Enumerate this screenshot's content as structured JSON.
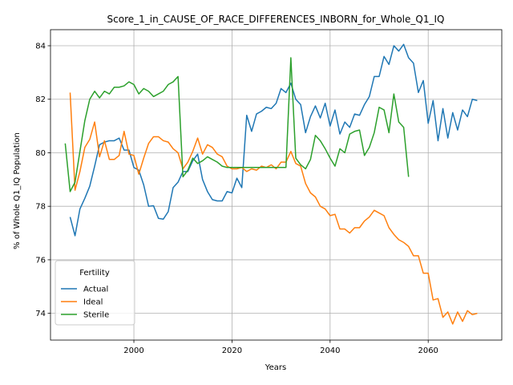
{
  "chart_data": {
    "type": "line",
    "title": "Score_1_in_CAUSE_OF_RACE_DIFFERENCES_INBORN_for_Whole_Q1_IQ",
    "xlabel": "Years",
    "ylabel": "% of Whole Q1_IQ Population",
    "xlim": [
      1983,
      2075
    ],
    "ylim": [
      73.0,
      84.6
    ],
    "xticks": [
      2000,
      2020,
      2040,
      2060
    ],
    "yticks": [
      74,
      76,
      78,
      80,
      82,
      84
    ],
    "grid": true,
    "legend": {
      "title": "Fertility",
      "placement": "lower-left"
    },
    "series": [
      {
        "name": "Actual",
        "color": "#1f77b4",
        "points": [
          [
            1987,
            77.6
          ],
          [
            1988,
            76.9
          ],
          [
            1989,
            77.9
          ],
          [
            1990,
            78.3
          ],
          [
            1991,
            78.75
          ],
          [
            1992,
            79.5
          ],
          [
            1993,
            80.3
          ],
          [
            1994,
            80.4
          ],
          [
            1995,
            80.45
          ],
          [
            1996,
            80.45
          ],
          [
            1997,
            80.55
          ],
          [
            1998,
            80.1
          ],
          [
            1999,
            80.1
          ],
          [
            2000,
            79.45
          ],
          [
            2001,
            79.35
          ],
          [
            2002,
            78.8
          ],
          [
            2003,
            78.0
          ],
          [
            2004,
            78.02
          ],
          [
            2005,
            77.55
          ],
          [
            2006,
            77.52
          ],
          [
            2007,
            77.8
          ],
          [
            2008,
            78.7
          ],
          [
            2009,
            78.9
          ],
          [
            2010,
            79.3
          ],
          [
            2011,
            79.3
          ],
          [
            2012,
            79.7
          ],
          [
            2013,
            79.95
          ],
          [
            2014,
            79.0
          ],
          [
            2015,
            78.55
          ],
          [
            2016,
            78.25
          ],
          [
            2017,
            78.2
          ],
          [
            2018,
            78.2
          ],
          [
            2019,
            78.55
          ],
          [
            2020,
            78.5
          ],
          [
            2021,
            79.05
          ],
          [
            2022,
            78.7
          ],
          [
            2023,
            81.4
          ],
          [
            2024,
            80.8
          ],
          [
            2025,
            81.45
          ],
          [
            2026,
            81.55
          ],
          [
            2027,
            81.7
          ],
          [
            2028,
            81.65
          ],
          [
            2029,
            81.85
          ],
          [
            2030,
            82.4
          ],
          [
            2031,
            82.25
          ],
          [
            2032,
            82.6
          ],
          [
            2033,
            82.0
          ],
          [
            2034,
            81.8
          ],
          [
            2035,
            80.75
          ],
          [
            2036,
            81.35
          ],
          [
            2037,
            81.75
          ],
          [
            2038,
            81.3
          ],
          [
            2039,
            81.85
          ],
          [
            2040,
            81.0
          ],
          [
            2041,
            81.6
          ],
          [
            2042,
            80.7
          ],
          [
            2043,
            81.15
          ],
          [
            2044,
            80.95
          ],
          [
            2045,
            81.45
          ],
          [
            2046,
            81.4
          ],
          [
            2047,
            81.8
          ],
          [
            2048,
            82.1
          ],
          [
            2049,
            82.85
          ],
          [
            2050,
            82.85
          ],
          [
            2051,
            83.6
          ],
          [
            2052,
            83.3
          ],
          [
            2053,
            84.0
          ],
          [
            2054,
            83.8
          ],
          [
            2055,
            84.05
          ],
          [
            2056,
            83.55
          ],
          [
            2057,
            83.35
          ],
          [
            2058,
            82.25
          ],
          [
            2059,
            82.7
          ],
          [
            2060,
            81.1
          ],
          [
            2061,
            81.95
          ],
          [
            2062,
            80.45
          ],
          [
            2063,
            81.65
          ],
          [
            2064,
            80.55
          ],
          [
            2065,
            81.5
          ],
          [
            2066,
            80.85
          ],
          [
            2067,
            81.6
          ],
          [
            2068,
            81.35
          ],
          [
            2069,
            82.0
          ],
          [
            2070,
            81.95
          ]
        ]
      },
      {
        "name": "Ideal",
        "color": "#ff7f0e",
        "points": [
          [
            1987,
            82.25
          ],
          [
            1988,
            78.6
          ],
          [
            1989,
            79.3
          ],
          [
            1990,
            80.2
          ],
          [
            1991,
            80.5
          ],
          [
            1992,
            81.15
          ],
          [
            1993,
            79.85
          ],
          [
            1994,
            80.45
          ],
          [
            1995,
            79.75
          ],
          [
            1996,
            79.75
          ],
          [
            1997,
            79.9
          ],
          [
            1998,
            80.8
          ],
          [
            1999,
            79.95
          ],
          [
            2000,
            79.9
          ],
          [
            2001,
            79.2
          ],
          [
            2002,
            79.8
          ],
          [
            2003,
            80.35
          ],
          [
            2004,
            80.6
          ],
          [
            2005,
            80.6
          ],
          [
            2006,
            80.45
          ],
          [
            2007,
            80.4
          ],
          [
            2008,
            80.15
          ],
          [
            2009,
            80.0
          ],
          [
            2010,
            79.4
          ],
          [
            2011,
            79.65
          ],
          [
            2012,
            80.05
          ],
          [
            2013,
            80.55
          ],
          [
            2014,
            79.95
          ],
          [
            2015,
            80.3
          ],
          [
            2016,
            80.2
          ],
          [
            2017,
            79.95
          ],
          [
            2018,
            79.85
          ],
          [
            2019,
            79.5
          ],
          [
            2020,
            79.4
          ],
          [
            2021,
            79.4
          ],
          [
            2022,
            79.45
          ],
          [
            2023,
            79.3
          ],
          [
            2024,
            79.4
          ],
          [
            2025,
            79.35
          ],
          [
            2026,
            79.5
          ],
          [
            2027,
            79.45
          ],
          [
            2028,
            79.55
          ],
          [
            2029,
            79.4
          ],
          [
            2030,
            79.65
          ],
          [
            2031,
            79.65
          ],
          [
            2032,
            80.05
          ],
          [
            2033,
            79.6
          ],
          [
            2034,
            79.5
          ],
          [
            2035,
            78.85
          ],
          [
            2036,
            78.5
          ],
          [
            2037,
            78.35
          ],
          [
            2038,
            78.0
          ],
          [
            2039,
            77.9
          ],
          [
            2040,
            77.65
          ],
          [
            2041,
            77.7
          ],
          [
            2042,
            77.15
          ],
          [
            2043,
            77.15
          ],
          [
            2044,
            77.0
          ],
          [
            2045,
            77.2
          ],
          [
            2046,
            77.2
          ],
          [
            2047,
            77.45
          ],
          [
            2048,
            77.6
          ],
          [
            2049,
            77.85
          ],
          [
            2050,
            77.75
          ],
          [
            2051,
            77.65
          ],
          [
            2052,
            77.2
          ],
          [
            2053,
            76.95
          ],
          [
            2054,
            76.75
          ],
          [
            2055,
            76.65
          ],
          [
            2056,
            76.5
          ],
          [
            2057,
            76.15
          ],
          [
            2058,
            76.15
          ],
          [
            2059,
            75.5
          ],
          [
            2060,
            75.5
          ],
          [
            2061,
            74.5
          ],
          [
            2062,
            74.55
          ],
          [
            2063,
            73.85
          ],
          [
            2064,
            74.05
          ],
          [
            2065,
            73.6
          ],
          [
            2066,
            74.05
          ],
          [
            2067,
            73.7
          ],
          [
            2068,
            74.1
          ],
          [
            2069,
            73.95
          ],
          [
            2070,
            74.0
          ]
        ]
      },
      {
        "name": "Sterile",
        "color": "#2ca02c",
        "points": [
          [
            1986,
            80.35
          ],
          [
            1987,
            78.55
          ],
          [
            1988,
            78.9
          ],
          [
            1989,
            80.05
          ],
          [
            1990,
            81.2
          ],
          [
            1991,
            82.0
          ],
          [
            1992,
            82.3
          ],
          [
            1993,
            82.05
          ],
          [
            1994,
            82.3
          ],
          [
            1995,
            82.2
          ],
          [
            1996,
            82.45
          ],
          [
            1997,
            82.45
          ],
          [
            1998,
            82.5
          ],
          [
            1999,
            82.65
          ],
          [
            2000,
            82.55
          ],
          [
            2001,
            82.2
          ],
          [
            2002,
            82.4
          ],
          [
            2003,
            82.3
          ],
          [
            2004,
            82.1
          ],
          [
            2005,
            82.2
          ],
          [
            2006,
            82.3
          ],
          [
            2007,
            82.55
          ],
          [
            2008,
            82.65
          ],
          [
            2009,
            82.85
          ],
          [
            2010,
            79.1
          ],
          [
            2011,
            79.35
          ],
          [
            2012,
            79.8
          ],
          [
            2013,
            79.6
          ],
          [
            2014,
            79.7
          ],
          [
            2015,
            79.85
          ],
          [
            2016,
            79.75
          ],
          [
            2017,
            79.65
          ],
          [
            2018,
            79.5
          ],
          [
            2019,
            79.45
          ],
          [
            2020,
            79.45
          ],
          [
            2021,
            79.45
          ],
          [
            2022,
            79.45
          ],
          [
            2023,
            79.45
          ],
          [
            2024,
            79.45
          ],
          [
            2025,
            79.45
          ],
          [
            2026,
            79.45
          ],
          [
            2027,
            79.45
          ],
          [
            2028,
            79.45
          ],
          [
            2029,
            79.45
          ],
          [
            2030,
            79.45
          ],
          [
            2031,
            79.45
          ],
          [
            2032,
            83.55
          ],
          [
            2033,
            79.8
          ],
          [
            2034,
            79.55
          ],
          [
            2035,
            79.4
          ],
          [
            2036,
            79.75
          ],
          [
            2037,
            80.65
          ],
          [
            2038,
            80.45
          ],
          [
            2039,
            80.15
          ],
          [
            2040,
            79.8
          ],
          [
            2041,
            79.5
          ],
          [
            2042,
            80.15
          ],
          [
            2043,
            80.0
          ],
          [
            2044,
            80.7
          ],
          [
            2045,
            80.8
          ],
          [
            2046,
            80.85
          ],
          [
            2047,
            79.9
          ],
          [
            2048,
            80.2
          ],
          [
            2049,
            80.75
          ],
          [
            2050,
            81.7
          ],
          [
            2051,
            81.6
          ],
          [
            2052,
            80.75
          ],
          [
            2053,
            82.2
          ],
          [
            2054,
            81.15
          ],
          [
            2055,
            80.95
          ],
          [
            2056,
            79.1
          ]
        ]
      }
    ]
  }
}
